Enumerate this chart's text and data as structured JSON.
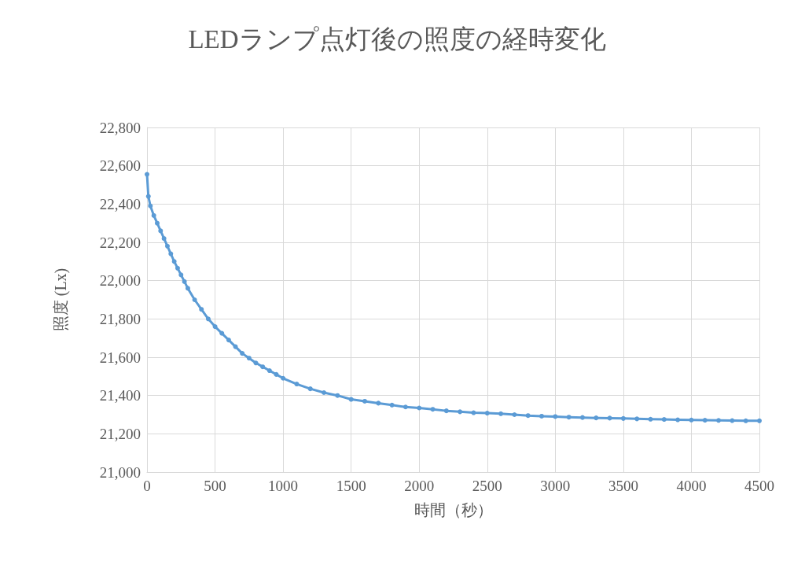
{
  "chart_data": {
    "type": "line",
    "title": "LEDランプ点灯後の照度の経時変化",
    "xlabel": "時間（秒）",
    "ylabel": "照度 (Lx)",
    "x": [
      0,
      10,
      25,
      50,
      75,
      100,
      125,
      150,
      175,
      200,
      225,
      250,
      275,
      300,
      350,
      400,
      450,
      500,
      550,
      600,
      650,
      700,
      750,
      800,
      850,
      900,
      950,
      1000,
      1100,
      1200,
      1300,
      1400,
      1500,
      1600,
      1700,
      1800,
      1900,
      2000,
      2100,
      2200,
      2300,
      2400,
      2500,
      2600,
      2700,
      2800,
      2900,
      3000,
      3100,
      3200,
      3300,
      3400,
      3500,
      3600,
      3700,
      3800,
      3900,
      4000,
      4100,
      4200,
      4300,
      4400,
      4500
    ],
    "series": [
      {
        "color": "#5b9bd5",
        "values": [
          22555,
          22440,
          22390,
          22340,
          22300,
          22260,
          22220,
          22180,
          22140,
          22100,
          22065,
          22030,
          21995,
          21960,
          21900,
          21850,
          21800,
          21760,
          21725,
          21690,
          21655,
          21620,
          21595,
          21570,
          21550,
          21530,
          21510,
          21490,
          21460,
          21435,
          21415,
          21400,
          21380,
          21370,
          21360,
          21350,
          21340,
          21335,
          21328,
          21320,
          21315,
          21310,
          21308,
          21305,
          21300,
          21295,
          21292,
          21290,
          21287,
          21285,
          21283,
          21282,
          21280,
          21278,
          21276,
          21275,
          21273,
          21272,
          21271,
          21270,
          21269,
          21268,
          21268
        ]
      }
    ],
    "xlim": [
      0,
      4500
    ],
    "xticks": [
      0,
      500,
      1000,
      1500,
      2000,
      2500,
      3000,
      3500,
      4000,
      4500
    ],
    "ylim": [
      21000,
      22800
    ],
    "yticks": [
      {
        "value": 21000,
        "label": "21,000"
      },
      {
        "value": 21200,
        "label": "21,200"
      },
      {
        "value": 21400,
        "label": "21,400"
      },
      {
        "value": 21600,
        "label": "21,600"
      },
      {
        "value": 21800,
        "label": "21,800"
      },
      {
        "value": 22000,
        "label": "22,000"
      },
      {
        "value": 22200,
        "label": "22,200"
      },
      {
        "value": 22400,
        "label": "22,400"
      },
      {
        "value": 22600,
        "label": "22,600"
      },
      {
        "value": 22800,
        "label": "22,800"
      }
    ],
    "grid": true,
    "marker": "circle",
    "line_style": "solid"
  }
}
